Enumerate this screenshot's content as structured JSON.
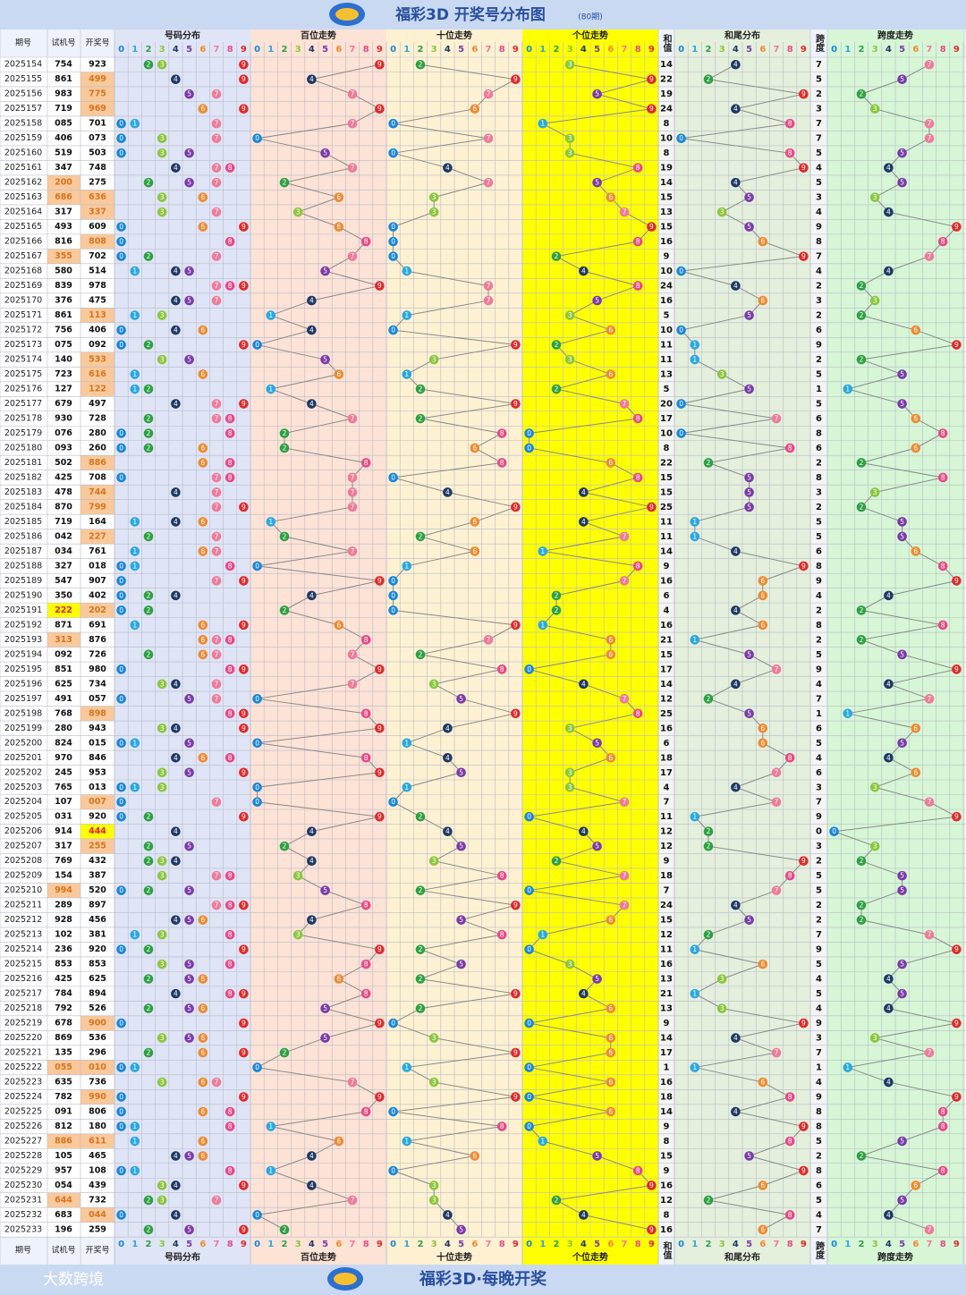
{
  "header": {
    "title": "福彩3D 开奖号分布图",
    "subtitle": "(80期)"
  },
  "columns": {
    "period": "期号",
    "trial": "试机号",
    "draw": "开奖号",
    "distribution": "号码分布",
    "hundreds": "百位走势",
    "tens": "十位走势",
    "units": "个位走势",
    "sum": "和值",
    "sum_tail": "和尾分布",
    "span": "跨度",
    "span_trend": "跨度走势"
  },
  "digits": [
    0,
    1,
    2,
    3,
    4,
    5,
    6,
    7,
    8,
    9
  ],
  "digit_colors": [
    "#1a86d8",
    "#2ba8e0",
    "#2ea043",
    "#8cc63f",
    "#1f3864",
    "#7a3aa8",
    "#f08a30",
    "#f07a9a",
    "#e84a88",
    "#e02a2a"
  ],
  "rows": [
    [
      2025154,
      "754",
      "923",
      14,
      7
    ],
    [
      2025155,
      "861",
      "499",
      22,
      5
    ],
    [
      2025156,
      "983",
      "775",
      19,
      2
    ],
    [
      2025157,
      "719",
      "969",
      24,
      3
    ],
    [
      2025158,
      "085",
      "701",
      8,
      7
    ],
    [
      2025159,
      "406",
      "073",
      10,
      7
    ],
    [
      2025160,
      "519",
      "503",
      8,
      5
    ],
    [
      2025161,
      "347",
      "748",
      19,
      4
    ],
    [
      2025162,
      "200",
      "275",
      14,
      5
    ],
    [
      2025163,
      "686",
      "636",
      15,
      3
    ],
    [
      2025164,
      "317",
      "337",
      13,
      4
    ],
    [
      2025165,
      "493",
      "609",
      15,
      9
    ],
    [
      2025166,
      "816",
      "808",
      16,
      8
    ],
    [
      2025167,
      "355",
      "702",
      9,
      7
    ],
    [
      2025168,
      "580",
      "514",
      10,
      4
    ],
    [
      2025169,
      "839",
      "978",
      24,
      2
    ],
    [
      2025170,
      "376",
      "475",
      16,
      3
    ],
    [
      2025171,
      "861",
      "113",
      5,
      2
    ],
    [
      2025172,
      "756",
      "406",
      10,
      6
    ],
    [
      2025173,
      "075",
      "092",
      11,
      9
    ],
    [
      2025174,
      "140",
      "533",
      11,
      2
    ],
    [
      2025175,
      "723",
      "616",
      13,
      5
    ],
    [
      2025176,
      "127",
      "122",
      5,
      1
    ],
    [
      2025177,
      "679",
      "497",
      20,
      5
    ],
    [
      2025178,
      "930",
      "728",
      17,
      6
    ],
    [
      2025179,
      "076",
      "280",
      10,
      8
    ],
    [
      2025180,
      "093",
      "260",
      8,
      6
    ],
    [
      2025181,
      "502",
      "886",
      22,
      2
    ],
    [
      2025182,
      "425",
      "708",
      15,
      8
    ],
    [
      2025183,
      "478",
      "744",
      15,
      3
    ],
    [
      2025184,
      "870",
      "799",
      25,
      2
    ],
    [
      2025185,
      "719",
      "164",
      11,
      5
    ],
    [
      2025186,
      "042",
      "227",
      11,
      5
    ],
    [
      2025187,
      "034",
      "761",
      14,
      6
    ],
    [
      2025188,
      "327",
      "018",
      9,
      8
    ],
    [
      2025189,
      "547",
      "907",
      16,
      9
    ],
    [
      2025190,
      "350",
      "402",
      6,
      4
    ],
    [
      2025191,
      "222",
      "202",
      4,
      2
    ],
    [
      2025192,
      "871",
      "691",
      16,
      8
    ],
    [
      2025193,
      "313",
      "876",
      21,
      2
    ],
    [
      2025194,
      "092",
      "726",
      15,
      5
    ],
    [
      2025195,
      "851",
      "980",
      17,
      9
    ],
    [
      2025196,
      "625",
      "734",
      14,
      4
    ],
    [
      2025197,
      "491",
      "057",
      12,
      7
    ],
    [
      2025198,
      "768",
      "898",
      25,
      1
    ],
    [
      2025199,
      "280",
      "943",
      16,
      6
    ],
    [
      2025200,
      "824",
      "015",
      6,
      5
    ],
    [
      2025201,
      "970",
      "846",
      18,
      4
    ],
    [
      2025202,
      "245",
      "953",
      17,
      6
    ],
    [
      2025203,
      "765",
      "013",
      4,
      3
    ],
    [
      2025204,
      "107",
      "007",
      7,
      7
    ],
    [
      2025205,
      "031",
      "920",
      11,
      9
    ],
    [
      2025206,
      "914",
      "444",
      12,
      0
    ],
    [
      2025207,
      "317",
      "255",
      12,
      3
    ],
    [
      2025208,
      "769",
      "432",
      9,
      2
    ],
    [
      2025209,
      "154",
      "387",
      18,
      5
    ],
    [
      2025210,
      "994",
      "520",
      7,
      5
    ],
    [
      2025211,
      "289",
      "897",
      24,
      2
    ],
    [
      2025212,
      "928",
      "456",
      15,
      2
    ],
    [
      2025213,
      "102",
      "381",
      12,
      7
    ],
    [
      2025214,
      "236",
      "920",
      11,
      9
    ],
    [
      2025215,
      "853",
      "853",
      16,
      5
    ],
    [
      2025216,
      "425",
      "625",
      13,
      4
    ],
    [
      2025217,
      "784",
      "894",
      21,
      5
    ],
    [
      2025218,
      "792",
      "526",
      13,
      4
    ],
    [
      2025219,
      "678",
      "900",
      9,
      9
    ],
    [
      2025220,
      "869",
      "536",
      14,
      3
    ],
    [
      2025221,
      "135",
      "296",
      17,
      7
    ],
    [
      2025222,
      "055",
      "010",
      1,
      1
    ],
    [
      2025223,
      "635",
      "736",
      16,
      4
    ],
    [
      2025224,
      "782",
      "990",
      18,
      9
    ],
    [
      2025225,
      "091",
      "806",
      14,
      8
    ],
    [
      2025226,
      "812",
      "180",
      9,
      8
    ],
    [
      2025227,
      "886",
      "611",
      8,
      5
    ],
    [
      2025228,
      "105",
      "465",
      15,
      2
    ],
    [
      2025229,
      "957",
      "108",
      9,
      8
    ],
    [
      2025230,
      "054",
      "439",
      16,
      6
    ],
    [
      2025231,
      "644",
      "732",
      12,
      5
    ],
    [
      2025232,
      "683",
      "044",
      8,
      4
    ],
    [
      2025233,
      "196",
      "259",
      16,
      7
    ]
  ],
  "footer": {
    "slogan": "福彩3D·每晚开奖",
    "brand": "大数跨境"
  }
}
